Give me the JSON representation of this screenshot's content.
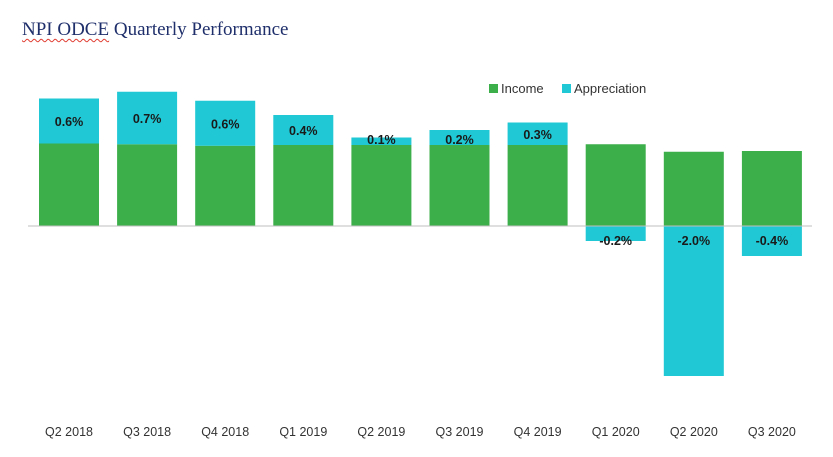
{
  "title": {
    "underlined": "NPI ODCE",
    "rest": " Quarterly Performance"
  },
  "chart_data": {
    "type": "bar",
    "stacked": true,
    "title": "NPI ODCE Quarterly Performance",
    "xlabel": "",
    "ylabel": "",
    "legend_position": "top-right",
    "grid": false,
    "ylim": [
      -2.0,
      1.75
    ],
    "categories": [
      "Q2 2018",
      "Q3 2018",
      "Q4 2018",
      "Q1 2019",
      "Q2 2019",
      "Q3 2019",
      "Q4 2019",
      "Q1 2020",
      "Q2 2020",
      "Q3 2020"
    ],
    "series": [
      {
        "name": "Income",
        "color": "#3cae4a",
        "values": [
          1.1,
          1.09,
          1.07,
          1.08,
          1.08,
          1.08,
          1.08,
          1.09,
          0.99,
          1.0
        ]
      },
      {
        "name": "Appreciation",
        "color": "#1fc8d4",
        "values": [
          0.6,
          0.7,
          0.6,
          0.4,
          0.1,
          0.2,
          0.3,
          -0.2,
          -2.0,
          -0.4
        ],
        "data_labels": [
          "0.6%",
          "0.7%",
          "0.6%",
          "0.4%",
          "0.1%",
          "0.2%",
          "0.3%",
          "-0.2%",
          "-2.0%",
          "-0.4%"
        ]
      }
    ]
  }
}
